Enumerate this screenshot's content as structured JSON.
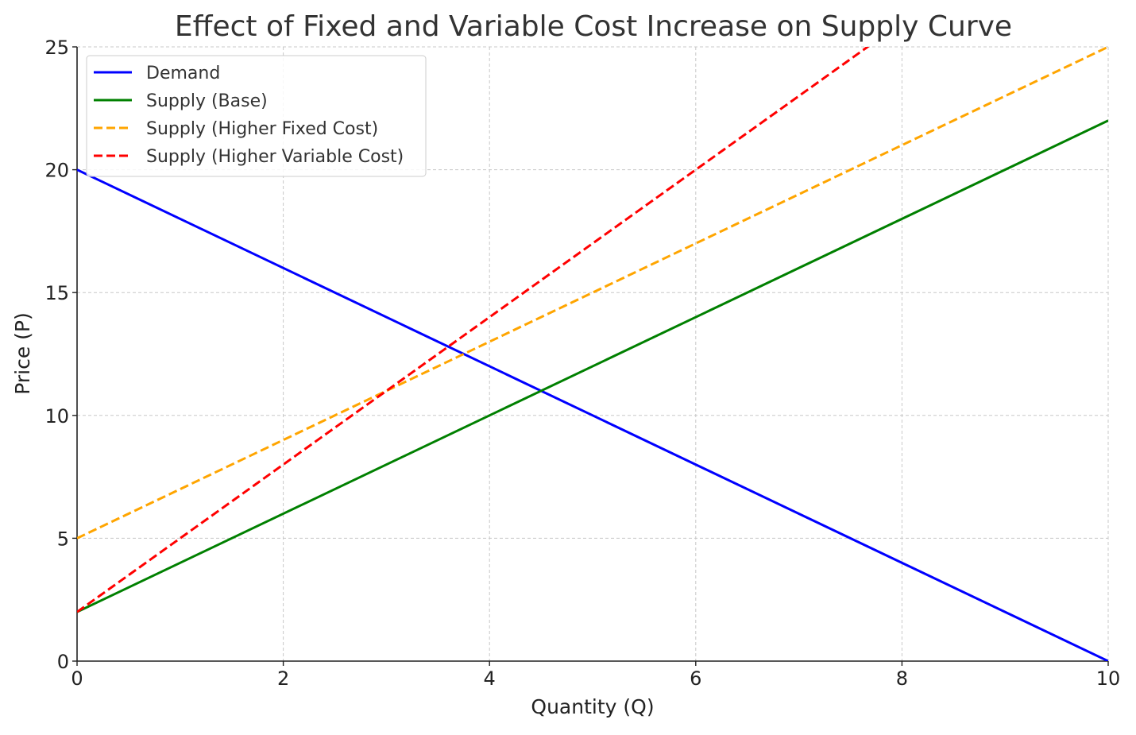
{
  "chart_data": {
    "type": "line",
    "title": "Effect of Fixed and Variable Cost Increase on Supply Curve",
    "xlabel": "Quantity (Q)",
    "ylabel": "Price (P)",
    "xlim": [
      0,
      10
    ],
    "ylim": [
      0,
      25
    ],
    "xticks": [
      "0",
      "2",
      "4",
      "6",
      "8",
      "10"
    ],
    "yticks": [
      "0",
      "5",
      "10",
      "15",
      "20",
      "25"
    ],
    "grid": true,
    "legend_position": "top-left",
    "series": [
      {
        "name": "Demand",
        "color": "#0000ff",
        "dashed": false,
        "x": [
          0,
          10
        ],
        "y": [
          20,
          0
        ]
      },
      {
        "name": "Supply (Base)",
        "color": "#008000",
        "dashed": false,
        "x": [
          0,
          10
        ],
        "y": [
          2,
          22
        ]
      },
      {
        "name": "Supply (Higher Fixed Cost)",
        "color": "#ffa500",
        "dashed": true,
        "x": [
          0,
          10
        ],
        "y": [
          5,
          25
        ]
      },
      {
        "name": "Supply (Higher Variable Cost)",
        "color": "#ff0000",
        "dashed": true,
        "x": [
          0,
          10
        ],
        "y": [
          2,
          32
        ]
      }
    ]
  }
}
